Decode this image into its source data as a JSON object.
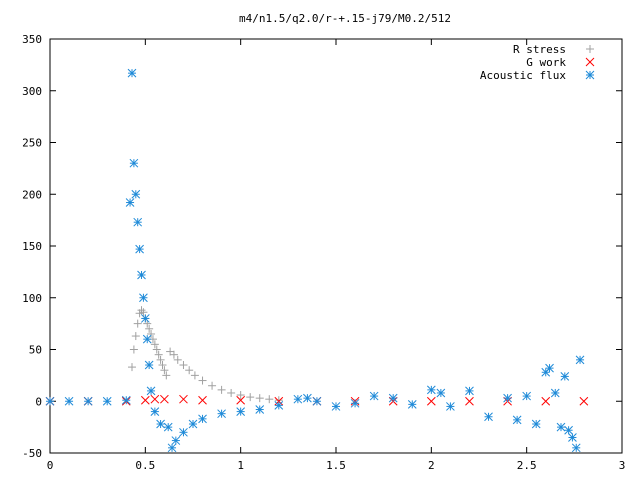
{
  "chart_data": {
    "type": "scatter",
    "title": "m4/n1.5/q2.0/r-+.15-j79/M0.2/512",
    "xlabel": "",
    "ylabel": "",
    "xlim": [
      0,
      3
    ],
    "ylim": [
      -50,
      350
    ],
    "x_ticks": [
      0,
      0.5,
      1,
      1.5,
      2,
      2.5,
      3
    ],
    "x_tick_labels": [
      "0",
      "0.5",
      "1",
      "1.5",
      "2",
      "2.5",
      "3"
    ],
    "y_ticks": [
      -50,
      0,
      50,
      100,
      150,
      200,
      250,
      300,
      350
    ],
    "y_tick_labels": [
      "-50",
      "0",
      "50",
      "100",
      "150",
      "200",
      "250",
      "300",
      "350"
    ],
    "grid": false,
    "legend_position": "top-right",
    "series": [
      {
        "name": "R stress",
        "marker": "plus",
        "color": "#a0a0a0",
        "x": [
          0.43,
          0.44,
          0.45,
          0.46,
          0.47,
          0.48,
          0.49,
          0.5,
          0.51,
          0.52,
          0.53,
          0.54,
          0.55,
          0.56,
          0.57,
          0.58,
          0.59,
          0.6,
          0.61,
          0.63,
          0.65,
          0.67,
          0.7,
          0.73,
          0.76,
          0.8,
          0.85,
          0.9,
          0.95,
          1.0,
          1.05,
          1.1,
          1.15,
          1.2
        ],
        "y": [
          33,
          50,
          63,
          75,
          85,
          88,
          86,
          80,
          75,
          70,
          65,
          60,
          55,
          50,
          45,
          40,
          35,
          30,
          25,
          48,
          45,
          40,
          35,
          30,
          25,
          20,
          15,
          11,
          8,
          6,
          4,
          3,
          2,
          1
        ]
      },
      {
        "name": "G work",
        "marker": "cross",
        "color": "#ff0000",
        "x": [
          0.0,
          0.2,
          0.4,
          0.5,
          0.55,
          0.6,
          0.7,
          0.8,
          1.0,
          1.2,
          1.4,
          1.6,
          1.8,
          2.0,
          2.2,
          2.4,
          2.6,
          2.8
        ],
        "y": [
          0,
          0,
          0,
          1,
          2,
          2,
          2,
          1,
          1,
          0,
          0,
          0,
          0,
          0,
          0,
          0,
          0,
          0
        ]
      },
      {
        "name": "Acoustic flux",
        "marker": "star",
        "color": "#1e8ad8",
        "x": [
          0.0,
          0.1,
          0.2,
          0.3,
          0.4,
          0.42,
          0.43,
          0.44,
          0.45,
          0.46,
          0.47,
          0.48,
          0.49,
          0.5,
          0.51,
          0.52,
          0.53,
          0.55,
          0.58,
          0.62,
          0.64,
          0.66,
          0.7,
          0.75,
          0.8,
          0.9,
          1.0,
          1.1,
          1.2,
          1.3,
          1.35,
          1.4,
          1.5,
          1.6,
          1.7,
          1.8,
          1.9,
          2.0,
          2.05,
          2.1,
          2.2,
          2.3,
          2.4,
          2.45,
          2.5,
          2.55,
          2.6,
          2.62,
          2.65,
          2.68,
          2.7,
          2.72,
          2.74,
          2.76,
          2.78
        ],
        "y": [
          0,
          0,
          0,
          0,
          1,
          192,
          317,
          230,
          200,
          173,
          147,
          122,
          100,
          80,
          60,
          35,
          10,
          -10,
          -22,
          -25,
          -45,
          -38,
          -30,
          -22,
          -17,
          -12,
          -10,
          -8,
          -4,
          2,
          3,
          0,
          -5,
          -2,
          5,
          3,
          -3,
          11,
          8,
          -5,
          10,
          -15,
          3,
          -18,
          5,
          -22,
          28,
          32,
          8,
          -25,
          24,
          -28,
          -35,
          -45,
          40
        ]
      }
    ]
  }
}
